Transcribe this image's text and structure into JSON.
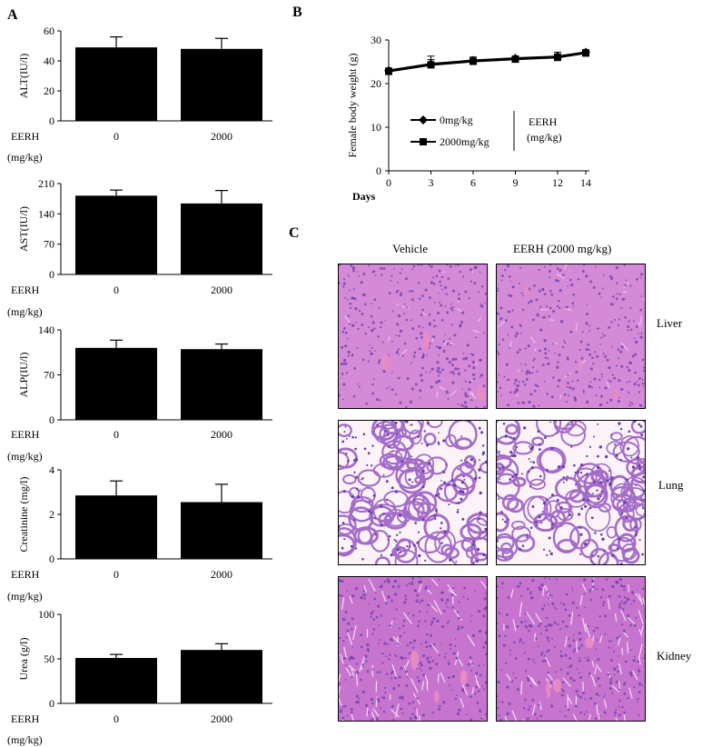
{
  "panels": {
    "A": "A",
    "B": "B",
    "C": "C"
  },
  "chart_data": [
    {
      "type": "bar",
      "panel": "A",
      "ylabel": "ALT(IU/l)",
      "categories": [
        "0",
        "2000"
      ],
      "xlabel_line1": "EERH",
      "xlabel_line2": "(mg/kg)",
      "values": [
        49,
        48
      ],
      "errors": [
        7,
        7
      ],
      "ylim": [
        0,
        60
      ],
      "yticks": [
        "0",
        "20",
        "40",
        "60"
      ]
    },
    {
      "type": "bar",
      "panel": "A",
      "ylabel": "AST(IU/l)",
      "categories": [
        "0",
        "2000"
      ],
      "xlabel_line1": "EERH",
      "xlabel_line2": "(mg/kg)",
      "values": [
        182,
        164
      ],
      "errors": [
        13,
        30
      ],
      "ylim": [
        0,
        210
      ],
      "yticks": [
        "0",
        "70",
        "140",
        "210"
      ]
    },
    {
      "type": "bar",
      "panel": "A",
      "ylabel": "ALP(IU/l)",
      "categories": [
        "0",
        "2000"
      ],
      "xlabel_line1": "EERH",
      "xlabel_line2": "(mg/kg)",
      "values": [
        112,
        110
      ],
      "errors": [
        12,
        8
      ],
      "ylim": [
        0,
        140
      ],
      "yticks": [
        "0",
        "70",
        "140"
      ]
    },
    {
      "type": "bar",
      "panel": "A",
      "ylabel": "Creatinine (mg/l)",
      "categories": [
        "0",
        "2000"
      ],
      "xlabel_line1": "EERH",
      "xlabel_line2": "(mg/kg)",
      "values": [
        2.85,
        2.55
      ],
      "errors": [
        0.65,
        0.8
      ],
      "ylim": [
        0,
        4
      ],
      "yticks": [
        "0",
        "2",
        "4"
      ]
    },
    {
      "type": "bar",
      "panel": "A",
      "ylabel": "Urea (g/l)",
      "categories": [
        "0",
        "2000"
      ],
      "xlabel_line1": "EERH",
      "xlabel_line2": "(mg/kg)",
      "values": [
        51,
        60
      ],
      "errors": [
        4,
        7
      ],
      "ylim": [
        0,
        100
      ],
      "yticks": [
        "0",
        "50",
        "100"
      ]
    },
    {
      "type": "line",
      "panel": "B",
      "ylabel": "Female body weight (g)",
      "xlabel": "Days",
      "x": [
        0,
        3,
        6,
        9,
        12,
        14
      ],
      "xticks": [
        "0",
        "3",
        "6",
        "9",
        "12",
        "14"
      ],
      "ylim": [
        0,
        30
      ],
      "yticks": [
        "0",
        "10",
        "20",
        "30"
      ],
      "xlim": [
        0,
        14
      ],
      "series": [
        {
          "name": "0mg/kg",
          "marker": "diamond",
          "values": [
            23,
            24.5,
            25.3,
            25.8,
            26.2,
            27.2
          ],
          "errors": [
            0.6,
            1.8,
            0.8,
            0.5,
            1.0,
            0.6
          ]
        },
        {
          "name": "2000mg/kg",
          "marker": "square",
          "values": [
            22.8,
            24.3,
            25.1,
            25.6,
            26.0,
            27.0
          ],
          "errors": [
            0.5,
            1.2,
            0.7,
            0.4,
            0.8,
            0.5
          ]
        }
      ],
      "legend_group_line1": "EERH",
      "legend_group_line2": "(mg/kg)",
      "legend_position": "bottom-center"
    }
  ],
  "histology": {
    "columns": [
      "Vehicle",
      "EERH (2000 mg/kg)"
    ],
    "rows": [
      "Liver",
      "Lung",
      "Kidney"
    ],
    "colors": {
      "liver": "#d58ad8",
      "lung_bg": "#fbf3f8",
      "lung_tissue": "#a46cc9",
      "kidney": "#c774cf",
      "nuclei": "#6a3ea8",
      "pink": "#e98cc2"
    }
  }
}
